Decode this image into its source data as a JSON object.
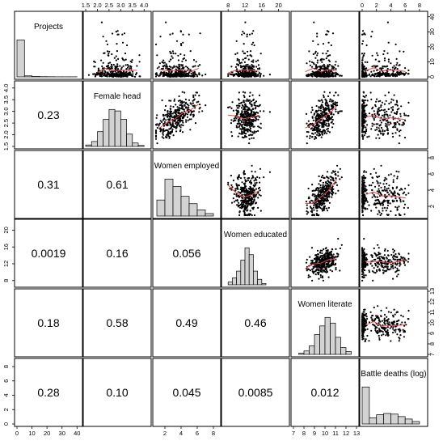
{
  "chart_data": {
    "type": "scatter-matrix",
    "variables": [
      "Projects",
      "Female head",
      "Women employed",
      "Women educated",
      "Women literate",
      "Battle deaths (log)"
    ],
    "ranges": [
      [
        0,
        42
      ],
      [
        1.5,
        4.2
      ],
      [
        0.8,
        8.6
      ],
      [
        7,
        22
      ],
      [
        7,
        13
      ],
      [
        0,
        8.8
      ]
    ],
    "ticks": [
      [
        0,
        10,
        20,
        30,
        40
      ],
      [
        1.5,
        2.0,
        2.5,
        3.0,
        3.5,
        4.0
      ],
      [
        2,
        4,
        6,
        8
      ],
      [
        8,
        12,
        16,
        20
      ],
      [
        7,
        8,
        9,
        10,
        11,
        12,
        13
      ],
      [
        0,
        2,
        4,
        6,
        8
      ]
    ],
    "tick_labels": [
      [
        "0",
        "10",
        "20",
        "30",
        "40"
      ],
      [
        "1.5",
        "2.0",
        "2.5",
        "3.0",
        "3.5",
        "4.0"
      ],
      [
        "2",
        "4",
        "6",
        "8"
      ],
      [
        "8",
        "12",
        "16",
        "20"
      ],
      [
        "7",
        "8",
        "9",
        "10",
        "11",
        "12",
        "13"
      ],
      [
        "0",
        "2",
        "4",
        "6",
        "8"
      ]
    ],
    "correlations": [
      [
        null,
        null,
        null,
        null,
        null,
        null
      ],
      [
        "0.23",
        null,
        null,
        null,
        null,
        null
      ],
      [
        "0.31",
        "0.61",
        null,
        null,
        null,
        null
      ],
      [
        "0.0019",
        "0.16",
        "0.056",
        null,
        null,
        null
      ],
      [
        "0.18",
        "0.58",
        "0.49",
        "0.46",
        null,
        null
      ],
      [
        "0.28",
        "0.10",
        "0.045",
        "0.0085",
        "0.012",
        null
      ]
    ],
    "histograms": [
      {
        "edges": [
          0,
          5,
          10,
          15,
          20,
          25,
          30,
          35,
          40
        ],
        "density": [
          0.92,
          0.025,
          0.01,
          0.006,
          0.004,
          0.002,
          0.002,
          0.002
        ]
      },
      {
        "edges": [
          1.5,
          1.75,
          2.0,
          2.25,
          2.5,
          2.75,
          3.0,
          3.25,
          3.5,
          3.75,
          4.0
        ],
        "density": [
          0.03,
          0.1,
          0.3,
          0.55,
          0.75,
          0.72,
          0.55,
          0.25,
          0.07,
          0.02
        ]
      },
      {
        "edges": [
          1,
          2,
          3,
          4,
          5,
          6,
          7,
          8
        ],
        "density": [
          0.13,
          0.3,
          0.24,
          0.16,
          0.1,
          0.05,
          0.02
        ]
      },
      {
        "edges": [
          8,
          9,
          10,
          11,
          12,
          13,
          14,
          15,
          16,
          17
        ],
        "density": [
          0.02,
          0.05,
          0.1,
          0.18,
          0.27,
          0.22,
          0.1,
          0.04,
          0.01
        ]
      },
      {
        "edges": [
          7.5,
          8,
          8.5,
          9,
          9.5,
          10,
          10.5,
          11,
          11.5,
          12,
          12.5
        ],
        "density": [
          0.02,
          0.06,
          0.15,
          0.35,
          0.5,
          0.65,
          0.55,
          0.3,
          0.12,
          0.05
        ]
      },
      {
        "edges": [
          0,
          1,
          2,
          3,
          4,
          5,
          6,
          7,
          8
        ],
        "density": [
          0.6,
          0.1,
          0.15,
          0.17,
          0.16,
          0.12,
          0.08,
          0.04
        ]
      }
    ]
  }
}
